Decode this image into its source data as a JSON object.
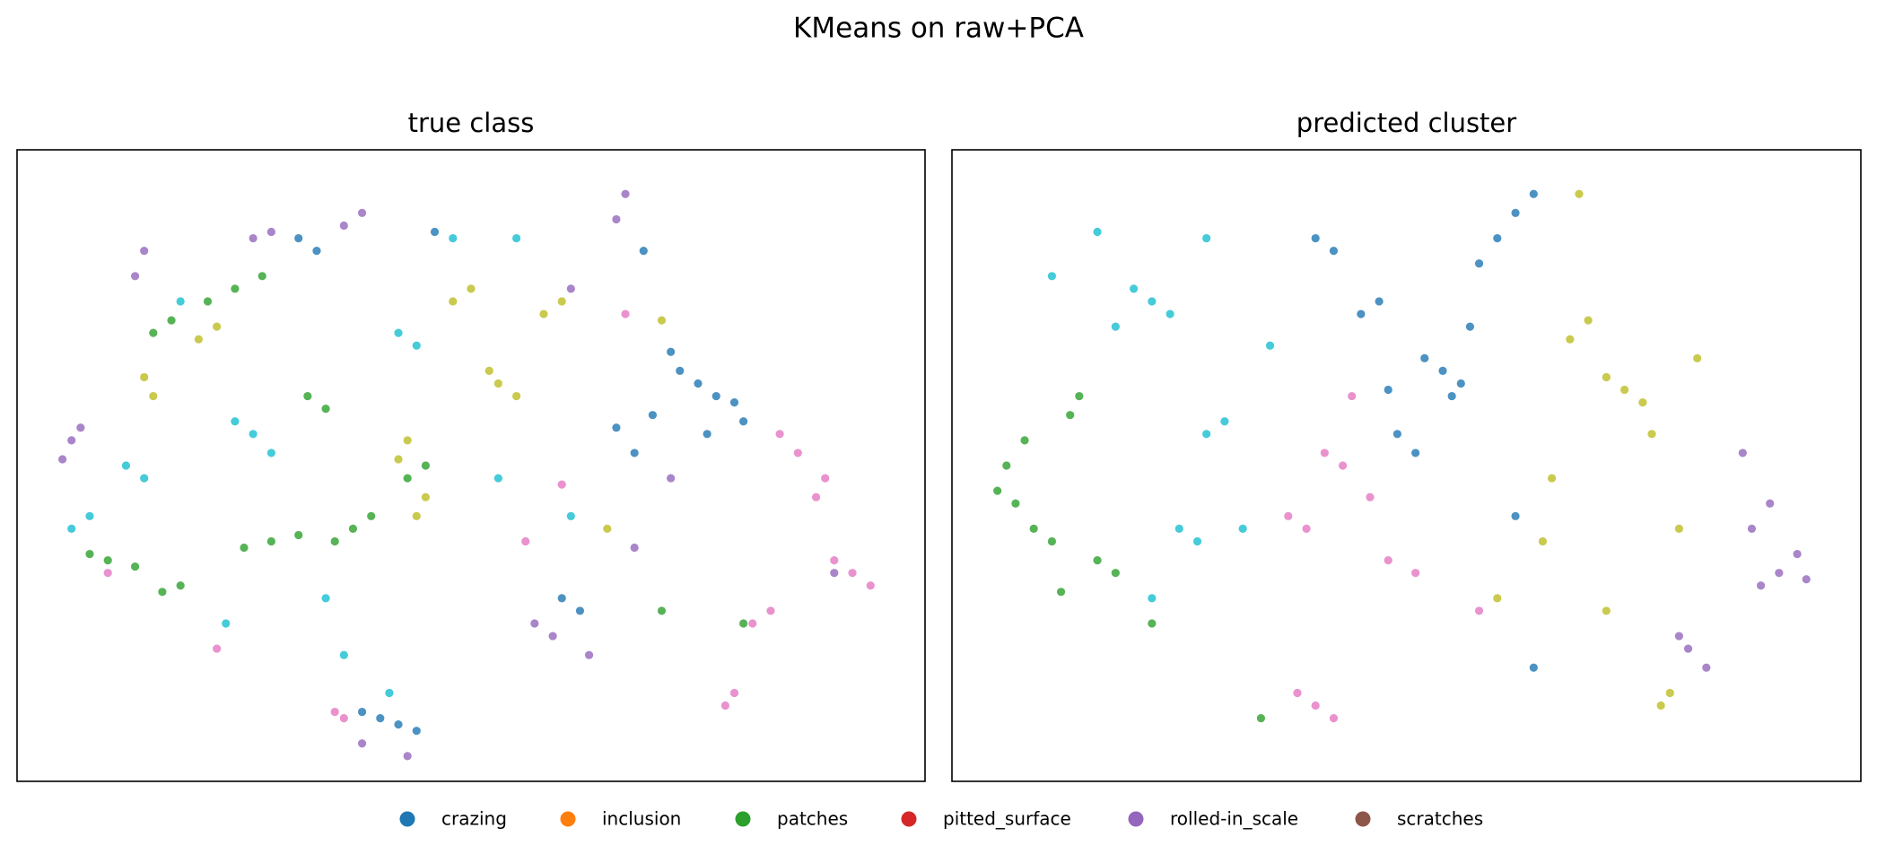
{
  "title": "KMeans on raw+PCA",
  "legend": {
    "entries": [
      {
        "name": "crazing",
        "color": "#1f77b4"
      },
      {
        "name": "inclusion",
        "color": "#ff7f0e"
      },
      {
        "name": "patches",
        "color": "#2ca02c"
      },
      {
        "name": "pitted_surface",
        "color": "#d62728"
      },
      {
        "name": "rolled-in_scale",
        "color": "#9467bd"
      },
      {
        "name": "scratches",
        "color": "#8c564b"
      }
    ]
  },
  "chart_data": [
    {
      "type": "scatter",
      "title": "true class",
      "xlim": [
        0,
        100
      ],
      "ylim": [
        0,
        100
      ],
      "series": [
        {
          "color": "#1f77b4",
          "x": [
            75,
            77,
            73,
            79,
            70,
            66,
            68,
            76,
            40,
            42,
            38,
            44,
            31,
            33,
            46,
            69,
            60,
            62,
            80,
            72
          ],
          "y": [
            63,
            61,
            65,
            60,
            58,
            56,
            52,
            55,
            10,
            9,
            11,
            8,
            86,
            84,
            87,
            84,
            29,
            27,
            57,
            68
          ]
        },
        {
          "color": "#2ca02c",
          "x": [
            24,
            27,
            21,
            15,
            17,
            10,
            13,
            8,
            18,
            28,
            31,
            25,
            37,
            39,
            35,
            32,
            34,
            43,
            45,
            80,
            71,
            16
          ],
          "y": [
            78,
            80,
            76,
            71,
            73,
            35,
            34,
            36,
            31,
            38,
            39,
            37,
            40,
            42,
            38,
            61,
            59,
            48,
            50,
            25,
            27,
            30
          ]
        },
        {
          "color": "#9467bd",
          "x": [
            14,
            13,
            6,
            5,
            7,
            38,
            36,
            67,
            66,
            61,
            72,
            90,
            57,
            59,
            38,
            43,
            68,
            26,
            28,
            63
          ],
          "y": [
            84,
            80,
            54,
            51,
            56,
            90,
            88,
            93,
            89,
            78,
            48,
            33,
            25,
            23,
            6,
            4,
            37,
            86,
            87,
            20
          ]
        },
        {
          "color": "#e377c2",
          "x": [
            89,
            88,
            92,
            94,
            90,
            81,
            83,
            79,
            78,
            36,
            35,
            84,
            86,
            56,
            67,
            10,
            22,
            60
          ],
          "y": [
            48,
            45,
            33,
            31,
            35,
            25,
            27,
            14,
            12,
            10,
            11,
            55,
            52,
            38,
            74,
            33,
            21,
            47
          ]
        },
        {
          "color": "#bcbd22",
          "x": [
            15,
            14,
            22,
            20,
            53,
            55,
            52,
            43,
            42,
            60,
            58,
            50,
            48,
            65,
            44,
            71,
            45
          ],
          "y": [
            61,
            64,
            72,
            70,
            63,
            61,
            65,
            54,
            51,
            76,
            74,
            78,
            76,
            40,
            42,
            73,
            45
          ]
        },
        {
          "color": "#17becf",
          "x": [
            6,
            8,
            24,
            26,
            44,
            42,
            48,
            55,
            14,
            12,
            53,
            61,
            18,
            34,
            28,
            23,
            41,
            36
          ],
          "y": [
            40,
            42,
            57,
            55,
            69,
            71,
            86,
            86,
            48,
            50,
            48,
            42,
            76,
            29,
            52,
            25,
            14,
            20
          ]
        }
      ]
    },
    {
      "type": "scatter",
      "title": "predicted cluster",
      "xlim": [
        0,
        100
      ],
      "ylim": [
        0,
        100
      ],
      "series": [
        {
          "color": "#1f77b4",
          "x": [
            54,
            56,
            52,
            55,
            47,
            45,
            60,
            58,
            64,
            62,
            40,
            42,
            51,
            49,
            62,
            64,
            57,
            48
          ],
          "y": [
            65,
            63,
            67,
            61,
            76,
            74,
            86,
            82,
            93,
            90,
            86,
            84,
            52,
            55,
            42,
            18,
            72,
            62
          ]
        },
        {
          "color": "#17becf",
          "x": [
            22,
            20,
            24,
            16,
            28,
            30,
            28,
            27,
            25,
            11,
            32,
            22,
            35,
            18
          ],
          "y": [
            76,
            78,
            74,
            87,
            86,
            57,
            55,
            38,
            40,
            80,
            40,
            29,
            69,
            72
          ]
        },
        {
          "color": "#2ca02c",
          "x": [
            8,
            6,
            11,
            9,
            14,
            13,
            18,
            16,
            22,
            7,
            5,
            12,
            34
          ],
          "y": [
            54,
            50,
            38,
            40,
            61,
            58,
            33,
            35,
            25,
            44,
            46,
            30,
            10
          ]
        },
        {
          "color": "#e377c2",
          "x": [
            41,
            43,
            39,
            37,
            40,
            42,
            38,
            51,
            48,
            58,
            44,
            46
          ],
          "y": [
            52,
            50,
            40,
            42,
            12,
            10,
            14,
            33,
            35,
            27,
            61,
            45
          ]
        },
        {
          "color": "#bcbd22",
          "x": [
            74,
            76,
            72,
            70,
            68,
            66,
            65,
            72,
            80,
            78,
            79,
            69,
            82,
            60,
            77
          ],
          "y": [
            62,
            60,
            64,
            73,
            70,
            48,
            38,
            27,
            40,
            12,
            14,
            93,
            67,
            29,
            55
          ]
        },
        {
          "color": "#9467bd",
          "x": [
            91,
            94,
            89,
            90,
            88,
            80,
            81,
            87,
            83,
            93
          ],
          "y": [
            33,
            32,
            31,
            44,
            40,
            23,
            21,
            52,
            18,
            36
          ]
        }
      ]
    }
  ]
}
